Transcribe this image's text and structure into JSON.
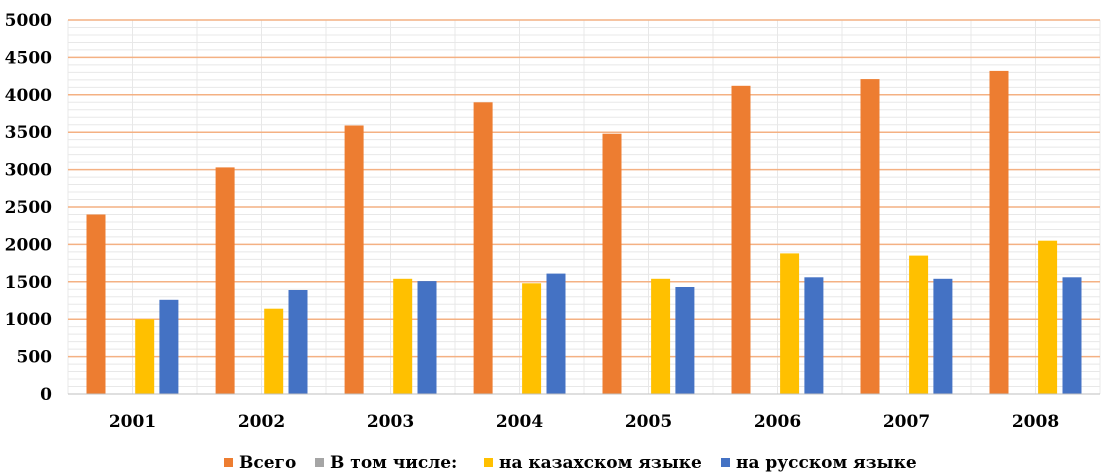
{
  "chart_data": {
    "type": "bar",
    "title": "",
    "xlabel": "",
    "ylabel": "",
    "ylim": [
      0,
      5000
    ],
    "yticks": [
      0,
      500,
      1000,
      1500,
      2000,
      2500,
      3000,
      3500,
      4000,
      4500,
      5000
    ],
    "grid": true,
    "legend_position": "bottom",
    "categories": [
      "2001",
      "2002",
      "2003",
      "2004",
      "2005",
      "2006",
      "2007",
      "2008"
    ],
    "series": [
      {
        "name": "Всего",
        "color": "#ED7D31",
        "values": [
          2400,
          3030,
          3590,
          3900,
          3480,
          4120,
          4210,
          4320
        ]
      },
      {
        "name": "В том числе:",
        "color": "#A5A5A5",
        "values": [
          0,
          0,
          0,
          0,
          0,
          0,
          0,
          0
        ]
      },
      {
        "name": "на казахском языке",
        "color": "#FFC000",
        "values": [
          1000,
          1140,
          1540,
          1480,
          1540,
          1880,
          1850,
          2050
        ]
      },
      {
        "name": "на русском языке",
        "color": "#4472C4",
        "values": [
          1260,
          1390,
          1510,
          1610,
          1430,
          1560,
          1540,
          1560
        ]
      }
    ],
    "colors": {
      "gridline": "#F4B183",
      "minor_grid": "#E8E8E8",
      "axis": "#BFBFBF"
    }
  }
}
